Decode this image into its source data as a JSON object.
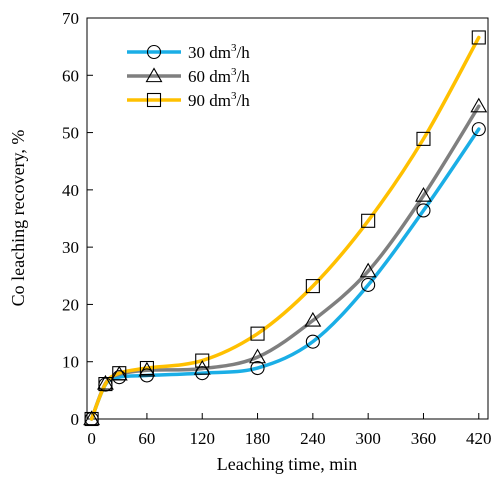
{
  "chart_data": {
    "type": "line",
    "xlabel": "Leaching time, min",
    "ylabel": "Co leaching recovery, %",
    "xlim": [
      -5,
      430
    ],
    "ylim": [
      0,
      70
    ],
    "xticks": [
      0,
      60,
      120,
      180,
      240,
      300,
      360,
      420
    ],
    "yticks": [
      0,
      10,
      20,
      30,
      40,
      50,
      60,
      70
    ],
    "grid": false,
    "legend": {
      "placement": "top-left"
    },
    "series": [
      {
        "name": "30 dm³/h",
        "name_main": "30 dm",
        "name_sup": "3",
        "name_tail": "/h",
        "color": "#1aaee6",
        "marker": "circle",
        "x": [
          0,
          15,
          30,
          60,
          120,
          180,
          240,
          300,
          360,
          420
        ],
        "y": [
          0,
          6.0,
          7.3,
          7.6,
          8.0,
          8.9,
          13.5,
          23.4,
          36.4,
          50.6
        ]
      },
      {
        "name": "60 dm³/h",
        "name_main": "60 dm",
        "name_sup": "3",
        "name_tail": "/h",
        "color": "#7f7f7f",
        "marker": "triangle",
        "x": [
          0,
          15,
          30,
          60,
          120,
          180,
          240,
          300,
          360,
          420
        ],
        "y": [
          0,
          6.2,
          7.8,
          8.5,
          8.8,
          10.8,
          17.2,
          25.8,
          39.0,
          54.6
        ]
      },
      {
        "name": "90 dm³/h",
        "name_main": "90 dm",
        "name_sup": "3",
        "name_tail": "/h",
        "color": "#ffc000",
        "marker": "square",
        "x": [
          0,
          15,
          30,
          60,
          120,
          180,
          240,
          300,
          360,
          420
        ],
        "y": [
          0,
          6.1,
          8.0,
          8.9,
          10.2,
          14.9,
          23.2,
          34.6,
          48.9,
          66.6
        ]
      }
    ]
  }
}
